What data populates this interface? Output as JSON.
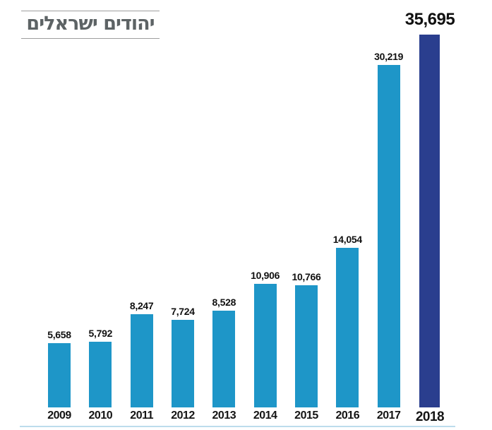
{
  "title": {
    "text": "יהודים ישראלים",
    "color": "#5d6365",
    "rule_color": "#9e9e9e"
  },
  "chart_data": {
    "type": "bar",
    "title": "יהודים ישראלים",
    "xlabel": "",
    "ylabel": "",
    "categories": [
      "2009",
      "2010",
      "2011",
      "2012",
      "2013",
      "2014",
      "2015",
      "2016",
      "2017",
      "2018"
    ],
    "values": [
      5658,
      5792,
      8247,
      7724,
      8528,
      10906,
      10766,
      14054,
      30219,
      35695
    ],
    "value_labels": [
      "5,658",
      "5,792",
      "8,247",
      "7,724",
      "8,528",
      "10,906",
      "10,766",
      "14,054",
      "30,219",
      "35,695"
    ],
    "bar_color": "#1e96c8",
    "highlight_color": "#2a3e8e",
    "highlight_index": 9,
    "label_color": "#111111",
    "baseline_rule_color": "#bcdcec",
    "grid": false,
    "legend": false,
    "ylim": [
      0,
      35695
    ],
    "last_bar_truncated": true
  }
}
